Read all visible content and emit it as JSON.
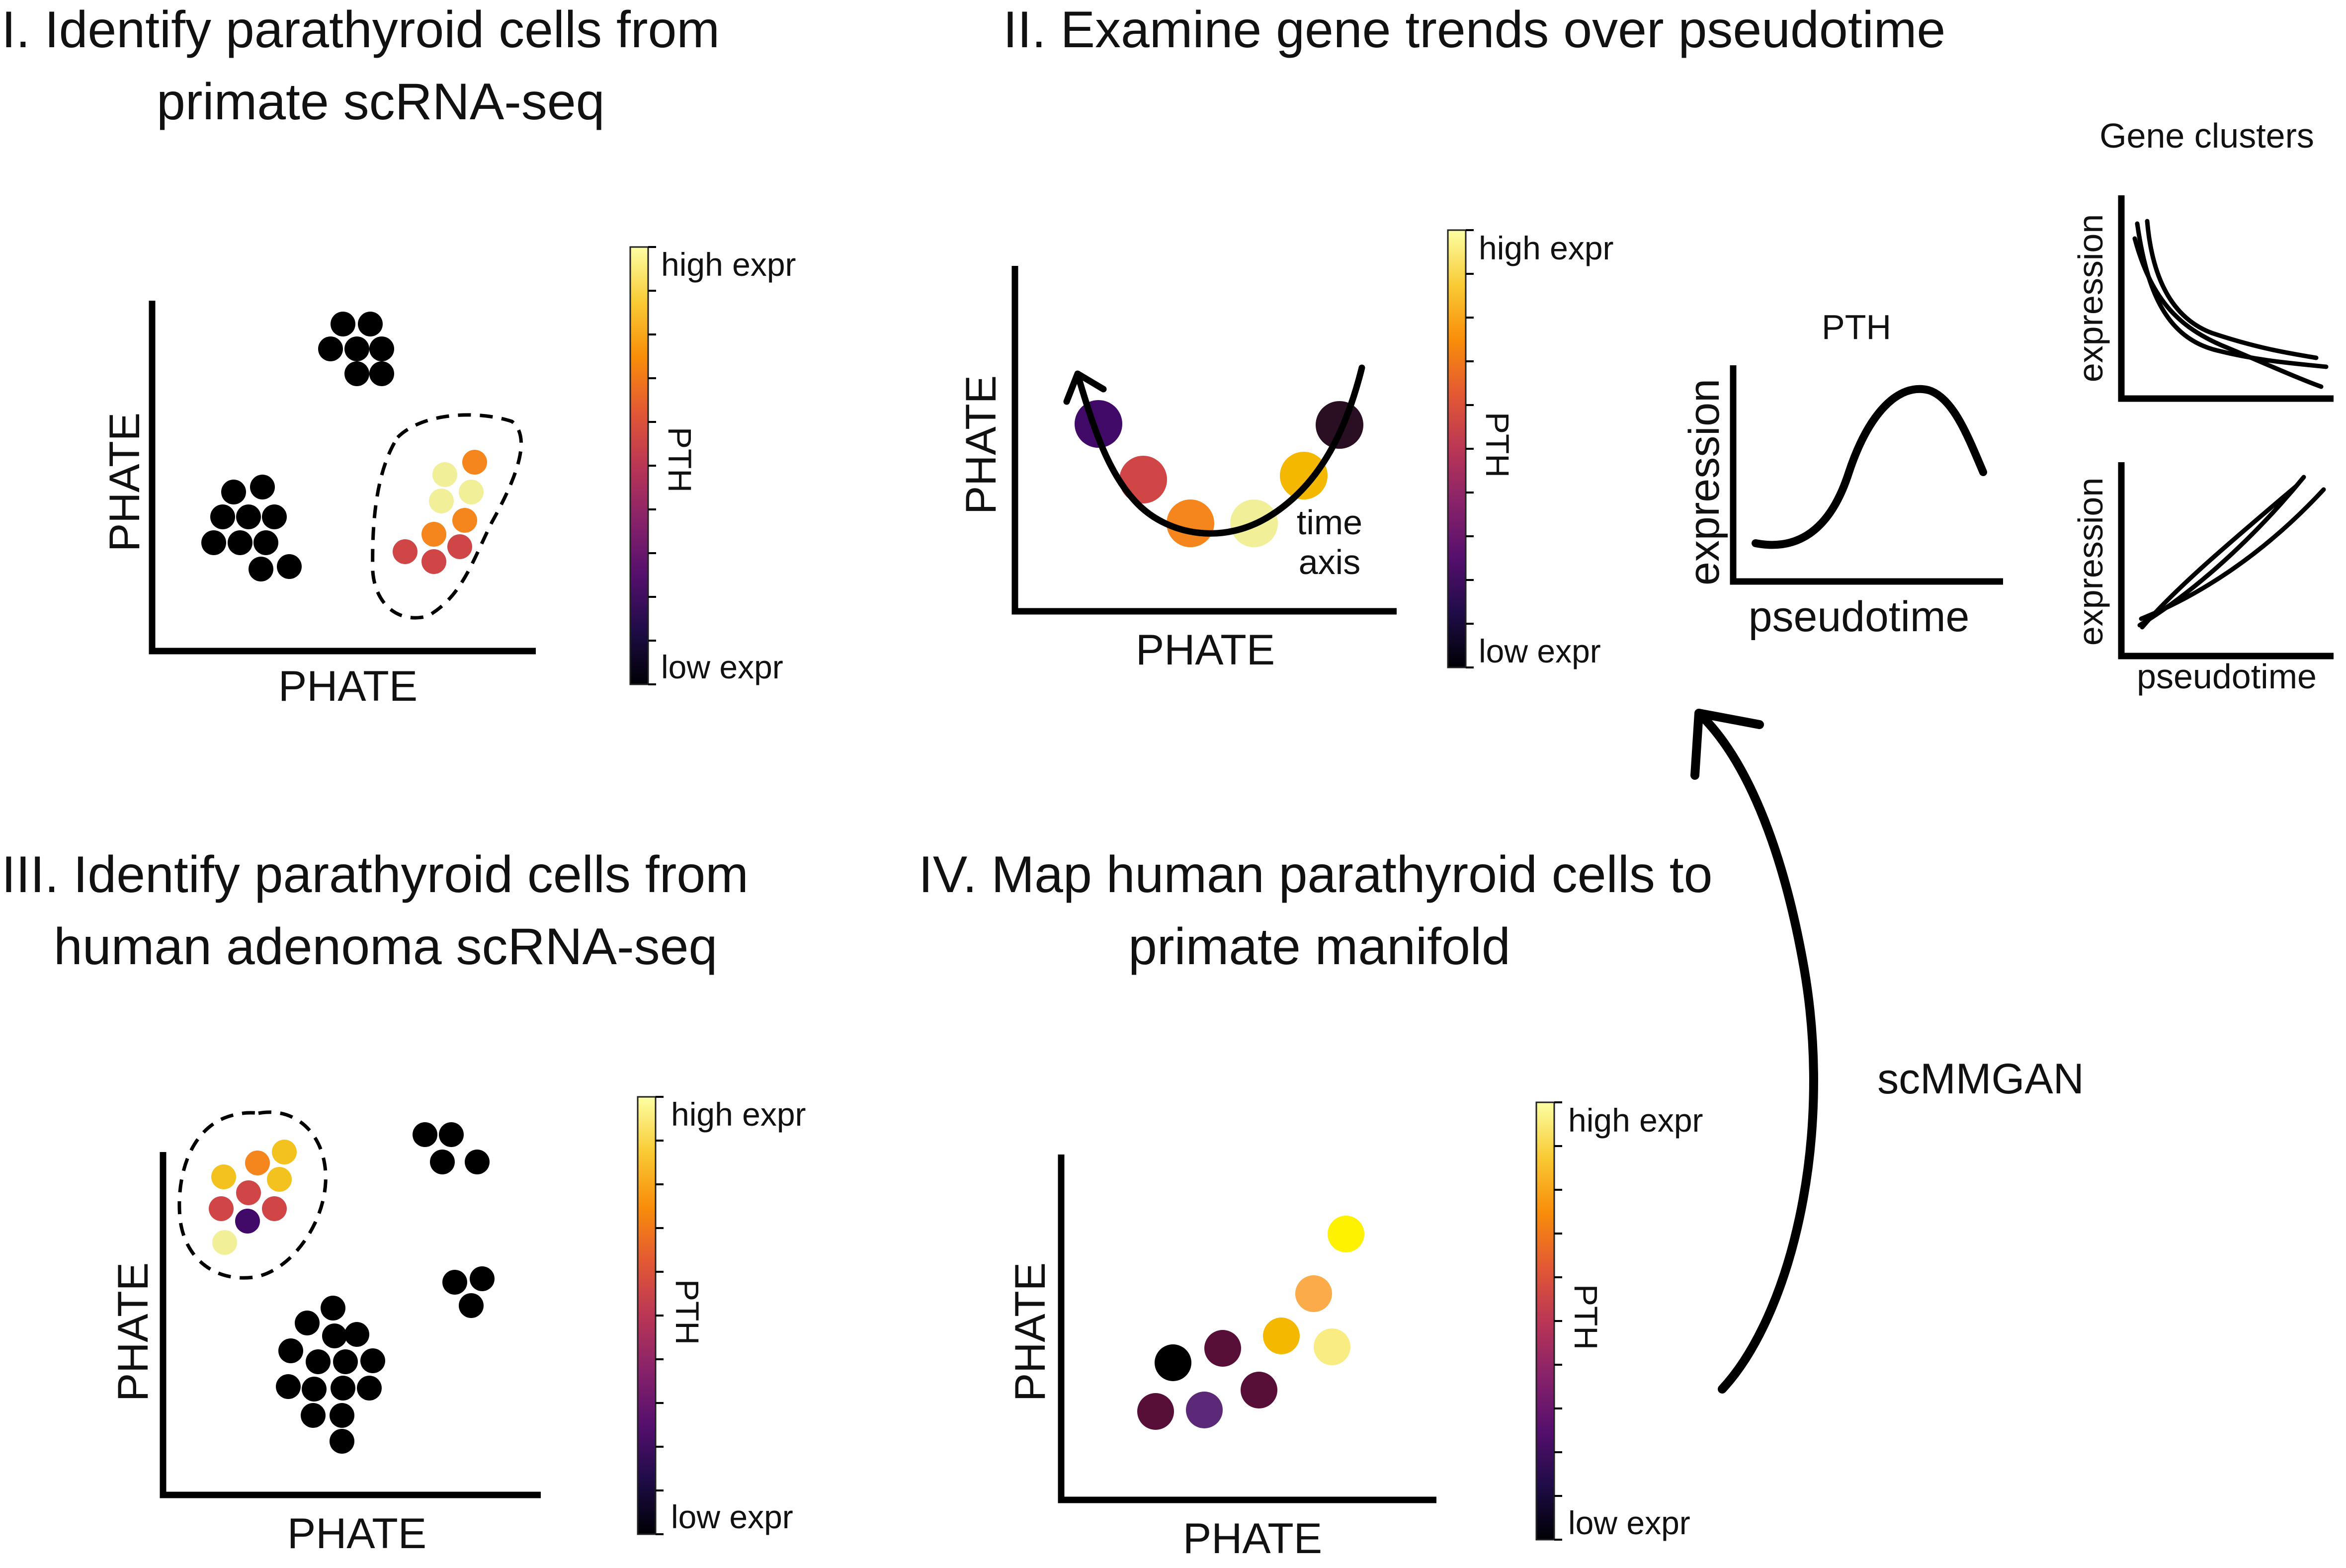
{
  "titles": {
    "p1": [
      "I. Identify parathyroid cells from",
      "primate scRNA-seq"
    ],
    "p2": [
      "II. Examine gene trends over pseudotime"
    ],
    "p3": [
      "III. Identify parathyroid cells from",
      "human adenoma scRNA-seq"
    ],
    "p4": [
      "IV. Map human parathyroid cells to",
      "primate manifold"
    ]
  },
  "axis_labels": {
    "phate": "PHATE",
    "expression": "expression",
    "pseudotime": "pseudotime"
  },
  "colorbar": {
    "high": "high expr",
    "low": "low expr",
    "gene": "PTH"
  },
  "panel2": {
    "time_axis": [
      "time",
      "axis"
    ],
    "gene_title": "PTH",
    "clusters_title": "Gene clusters"
  },
  "arrow_label": "scMMGAN",
  "colors": {
    "black": "#000000",
    "inferno": [
      "#000004",
      "#1f0c48",
      "#550f6d",
      "#88226a",
      "#ba3655",
      "#e35933",
      "#f98e09",
      "#f9cb35",
      "#fcffa4"
    ],
    "dot_dark_purple": "#420a68",
    "dot_red": "#d04545",
    "dot_orange": "#f4861d",
    "dot_yellow": "#f4c21e",
    "dot_pale": "#f1ef98",
    "dot_darkest": "#2a0e22",
    "dot_maroon": "#580f37",
    "dot_purple": "#5b2977",
    "dot_bright_yellow": "#fff200",
    "dot_light_orange": "#fbab4a",
    "dot_gold": "#f5b800",
    "dot_cream": "#f8ec82"
  }
}
